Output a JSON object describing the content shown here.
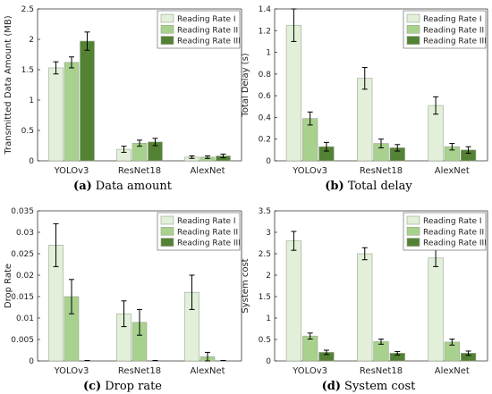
{
  "colors": {
    "series": [
      "#e2efd9",
      "#a9d18e",
      "#548235"
    ],
    "bar_stroke": "#9aa58e",
    "axis": "#333333",
    "errorbar": "#000000"
  },
  "chart_data": [
    {
      "type": "bar",
      "caption_label": "(a)",
      "caption_text": "Data amount",
      "ylabel": "Transmitted Data Amount (MB)",
      "xlabel": "",
      "categories": [
        "YOLOv3",
        "ResNet18",
        "AlexNet"
      ],
      "ylim": [
        0,
        2.5
      ],
      "yticks": [
        "0",
        "0.5",
        "1",
        "1.5",
        "2",
        "2.5"
      ],
      "legend_position": "top-right",
      "series": [
        {
          "name": "Reading Rate I",
          "values": [
            1.53,
            0.19,
            0.06
          ],
          "errors": [
            0.1,
            0.05,
            0.02
          ]
        },
        {
          "name": "Reading Rate II",
          "values": [
            1.62,
            0.29,
            0.06
          ],
          "errors": [
            0.09,
            0.05,
            0.02
          ]
        },
        {
          "name": "Reading Rate III",
          "values": [
            1.97,
            0.31,
            0.08
          ],
          "errors": [
            0.15,
            0.06,
            0.03
          ]
        }
      ]
    },
    {
      "type": "bar",
      "caption_label": "(b)",
      "caption_text": "Total delay",
      "ylabel": "Total Delay (s)",
      "xlabel": "",
      "categories": [
        "YOLOv3",
        "ResNet18",
        "AlexNet"
      ],
      "ylim": [
        0,
        1.4
      ],
      "yticks": [
        "0",
        "0.2",
        "0.4",
        "0.6",
        "0.8",
        "1",
        "1.2",
        "1.4"
      ],
      "legend_position": "top-right",
      "series": [
        {
          "name": "Reading Rate I",
          "values": [
            1.25,
            0.76,
            0.51
          ],
          "errors": [
            0.15,
            0.1,
            0.08
          ]
        },
        {
          "name": "Reading Rate II",
          "values": [
            0.39,
            0.16,
            0.13
          ],
          "errors": [
            0.06,
            0.04,
            0.03
          ]
        },
        {
          "name": "Reading Rate III",
          "values": [
            0.13,
            0.12,
            0.1
          ],
          "errors": [
            0.04,
            0.03,
            0.03
          ]
        }
      ]
    },
    {
      "type": "bar",
      "caption_label": "(c)",
      "caption_text": "Drop rate",
      "ylabel": "Drop Rate",
      "xlabel": "",
      "categories": [
        "YOLOv3",
        "ResNet18",
        "AlexNet"
      ],
      "ylim": [
        0,
        0.035
      ],
      "yticks": [
        "0",
        "0.005",
        "0.01",
        "0.015",
        "0.02",
        "0.025",
        "0.03",
        "0.035"
      ],
      "legend_position": "top-right",
      "series": [
        {
          "name": "Reading Rate I",
          "values": [
            0.027,
            0.011,
            0.016
          ],
          "errors": [
            0.005,
            0.003,
            0.004
          ]
        },
        {
          "name": "Reading Rate II",
          "values": [
            0.015,
            0.009,
            0.001
          ],
          "errors": [
            0.004,
            0.003,
            0.001
          ]
        },
        {
          "name": "Reading Rate III",
          "values": [
            0,
            0,
            0
          ],
          "errors": [
            0,
            0,
            0
          ]
        }
      ]
    },
    {
      "type": "bar",
      "caption_label": "(d)",
      "caption_text": "System cost",
      "ylabel": "System cost",
      "xlabel": "",
      "categories": [
        "YOLOv3",
        "ResNet18",
        "AlexNet"
      ],
      "ylim": [
        0,
        3.5
      ],
      "yticks": [
        "0",
        "0.5",
        "1",
        "1.5",
        "2",
        "2.5",
        "3",
        "3.5"
      ],
      "legend_position": "top-right",
      "series": [
        {
          "name": "Reading Rate I",
          "values": [
            2.8,
            2.5,
            2.4
          ],
          "errors": [
            0.22,
            0.14,
            0.2
          ]
        },
        {
          "name": "Reading Rate II",
          "values": [
            0.58,
            0.45,
            0.44
          ],
          "errors": [
            0.07,
            0.06,
            0.07
          ]
        },
        {
          "name": "Reading Rate III",
          "values": [
            0.2,
            0.18,
            0.18
          ],
          "errors": [
            0.05,
            0.04,
            0.05
          ]
        }
      ]
    }
  ]
}
